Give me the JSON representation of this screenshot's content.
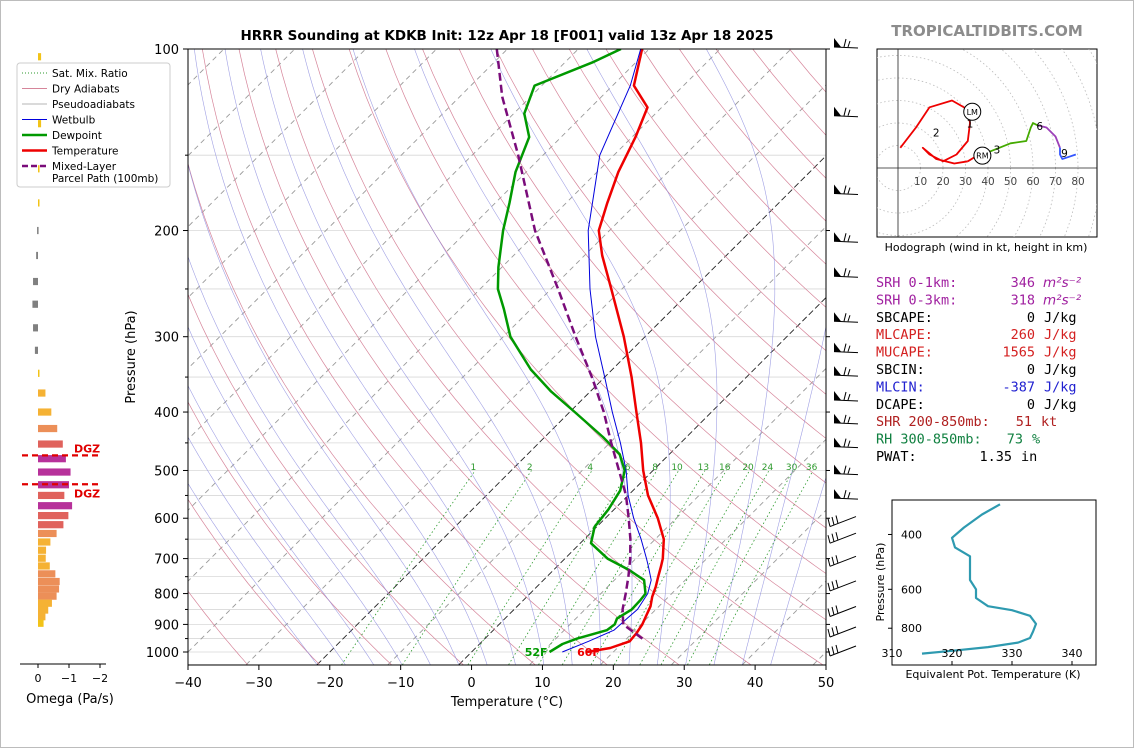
{
  "title": "HRRR Sounding at KDKB Init: 12z Apr 18 [F001] valid 13z Apr 18 2025",
  "watermark": "TROPICALTIDBITS.COM",
  "chart_data": [
    {
      "type": "line",
      "name": "skew-t",
      "xlabel": "Temperature (°C)",
      "ylabel": "Pressure (hPa)",
      "xlim": [
        -40,
        50
      ],
      "ylim": [
        1050,
        100
      ],
      "y_scale": "log",
      "skew": "45 degrees",
      "x_ticks": [
        -40,
        -30,
        -20,
        -10,
        0,
        10,
        20,
        30,
        40,
        50
      ],
      "y_ticks": [
        100,
        200,
        300,
        400,
        500,
        600,
        700,
        800,
        900,
        1000
      ],
      "legend": {
        "placement": "top-left",
        "entries": [
          {
            "label": "Sat. Mix. Ratio",
            "color": "#2e9a2e",
            "style": "dotted"
          },
          {
            "label": "Dry Adiabats",
            "color": "#d6859a",
            "style": "solid"
          },
          {
            "label": "Pseudoadiabats",
            "color": "#b5b5b5",
            "style": "solid"
          },
          {
            "label": "Wetbulb",
            "color": "#0000dd",
            "style": "solid"
          },
          {
            "label": "Dewpoint",
            "color": "#009900",
            "style": "solid"
          },
          {
            "label": "Temperature",
            "color": "#ee0000",
            "style": "solid"
          },
          {
            "label": "Mixed-Layer\nParcel Path (100mb)",
            "color": "#7a0c7a",
            "style": "dashed"
          }
        ]
      },
      "mixing_ratio_labels": [
        "1",
        "2",
        "4",
        "6",
        "8",
        "10",
        "13",
        "16",
        "20",
        "24",
        "30",
        "36"
      ],
      "surface_labels": {
        "dewpoint": "52F",
        "temperature": "60F"
      },
      "series": [
        {
          "name": "Temperature",
          "color": "#ee0000",
          "points": [
            [
              1000,
              16.3
            ],
            [
              985,
              19
            ],
            [
              960,
              20.8
            ],
            [
              930,
              20.6
            ],
            [
              900,
              20.2
            ],
            [
              870,
              19.5
            ],
            [
              840,
              18.8
            ],
            [
              810,
              17.7
            ],
            [
              780,
              16.8
            ],
            [
              750,
              15.7
            ],
            [
              720,
              14.6
            ],
            [
              700,
              13.8
            ],
            [
              650,
              11.2
            ],
            [
              600,
              7.4
            ],
            [
              550,
              2.8
            ],
            [
              500,
              -1.4
            ],
            [
              450,
              -5.6
            ],
            [
              400,
              -10.6
            ],
            [
              350,
              -16.2
            ],
            [
              300,
              -23
            ],
            [
              250,
              -31.5
            ],
            [
              220,
              -37.5
            ],
            [
              200,
              -41.5
            ],
            [
              180,
              -44.2
            ],
            [
              160,
              -47
            ],
            [
              140,
              -49.5
            ],
            [
              125,
              -52
            ],
            [
              115,
              -57
            ],
            [
              100,
              -61
            ]
          ]
        },
        {
          "name": "Dewpoint",
          "color": "#009900",
          "points": [
            [
              1000,
              11
            ],
            [
              970,
              11.7
            ],
            [
              950,
              13
            ],
            [
              920,
              16
            ],
            [
              900,
              16.3
            ],
            [
              880,
              15.8
            ],
            [
              850,
              16.6
            ],
            [
              820,
              16.5
            ],
            [
              800,
              16.3
            ],
            [
              760,
              14.2
            ],
            [
              730,
              10.5
            ],
            [
              700,
              6
            ],
            [
              660,
              1.5
            ],
            [
              620,
              -0.3
            ],
            [
              580,
              -0.8
            ],
            [
              540,
              -1.8
            ],
            [
              500,
              -4
            ],
            [
              470,
              -7
            ],
            [
              440,
              -11.8
            ],
            [
              400,
              -19.3
            ],
            [
              370,
              -25.5
            ],
            [
              340,
              -31.5
            ],
            [
              300,
              -39
            ],
            [
              270,
              -43.8
            ],
            [
              250,
              -47.5
            ],
            [
              230,
              -50.5
            ],
            [
              200,
              -55
            ],
            [
              180,
              -58
            ],
            [
              160,
              -61.5
            ],
            [
              140,
              -64.5
            ],
            [
              128,
              -68.5
            ],
            [
              115,
              -71
            ],
            [
              105,
              -66
            ],
            [
              100,
              -64
            ]
          ]
        },
        {
          "name": "Wetbulb",
          "color": "#0000dd",
          "points": [
            [
              1000,
              12.8
            ],
            [
              960,
              15
            ],
            [
              920,
              17
            ],
            [
              880,
              17.2
            ],
            [
              850,
              17.4
            ],
            [
              800,
              16.6
            ],
            [
              760,
              15.2
            ],
            [
              720,
              12.8
            ],
            [
              700,
              11.5
            ],
            [
              650,
              8
            ],
            [
              600,
              4
            ],
            [
              550,
              0
            ],
            [
              500,
              -3.8
            ],
            [
              450,
              -8.5
            ],
            [
              400,
              -14
            ],
            [
              350,
              -20
            ],
            [
              300,
              -27
            ],
            [
              250,
              -34.5
            ],
            [
              200,
              -43
            ],
            [
              150,
              -52
            ],
            [
              115,
              -57.5
            ],
            [
              100,
              -61.2
            ]
          ]
        },
        {
          "name": "Mixed-Layer Parcel Path (100mb)",
          "color": "#7a0c7a",
          "points": [
            [
              950,
              22.2
            ],
            [
              900,
              17.5
            ],
            [
              850,
              15.3
            ],
            [
              800,
              13.5
            ],
            [
              750,
              11.5
            ],
            [
              700,
              9.2
            ],
            [
              650,
              6.5
            ],
            [
              600,
              3.3
            ],
            [
              550,
              -0.3
            ],
            [
              500,
              -4.8
            ],
            [
              450,
              -9.8
            ],
            [
              400,
              -15.2
            ],
            [
              350,
              -21.8
            ],
            [
              300,
              -29.8
            ],
            [
              250,
              -39
            ],
            [
              200,
              -50.5
            ],
            [
              150,
              -63.5
            ],
            [
              120,
              -74
            ],
            [
              100,
              -81.5
            ]
          ]
        }
      ],
      "wind_barb_pressures": [
        100,
        130,
        175,
        210,
        240,
        285,
        320,
        350,
        385,
        420,
        460,
        510,
        560,
        610,
        650,
        710,
        780,
        860,
        930,
        1000
      ]
    },
    {
      "type": "bar",
      "name": "omega",
      "xlabel": "Omega (Pa/s)",
      "x_ticks": [
        "0",
        "−1",
        "−2"
      ],
      "annotations": [
        "DGZ",
        "DGZ"
      ],
      "bars": [
        {
          "p": 103,
          "v": -0.1
        },
        {
          "p": 133,
          "v": -0.1
        },
        {
          "p": 158,
          "v": -0.05
        },
        {
          "p": 180,
          "v": -0.02
        },
        {
          "p": 200,
          "v": 0.03
        },
        {
          "p": 220,
          "v": 0.06
        },
        {
          "p": 243,
          "v": 0.16
        },
        {
          "p": 265,
          "v": 0.18
        },
        {
          "p": 290,
          "v": 0.16
        },
        {
          "p": 316,
          "v": 0.1
        },
        {
          "p": 345,
          "v": -0.03
        },
        {
          "p": 372,
          "v": -0.24
        },
        {
          "p": 400,
          "v": -0.43
        },
        {
          "p": 426,
          "v": -0.62
        },
        {
          "p": 452,
          "v": -0.8
        },
        {
          "p": 478,
          "v": -0.9
        },
        {
          "p": 503,
          "v": -1.05
        },
        {
          "p": 528,
          "v": -1.0
        },
        {
          "p": 550,
          "v": -0.85
        },
        {
          "p": 572,
          "v": -1.1
        },
        {
          "p": 594,
          "v": -0.98
        },
        {
          "p": 615,
          "v": -0.82
        },
        {
          "p": 636,
          "v": -0.6
        },
        {
          "p": 657,
          "v": -0.4
        },
        {
          "p": 678,
          "v": -0.26
        },
        {
          "p": 699,
          "v": -0.25
        },
        {
          "p": 720,
          "v": -0.38
        },
        {
          "p": 742,
          "v": -0.56
        },
        {
          "p": 764,
          "v": -0.7
        },
        {
          "p": 786,
          "v": -0.68
        },
        {
          "p": 808,
          "v": -0.6
        },
        {
          "p": 830,
          "v": -0.45
        },
        {
          "p": 852,
          "v": -0.33
        },
        {
          "p": 874,
          "v": -0.24
        },
        {
          "p": 896,
          "v": -0.18
        }
      ]
    },
    {
      "type": "line",
      "name": "hodograph",
      "xlabel": "Hodograph (wind in kt, height in km)",
      "ring_labels": [
        "10",
        "20",
        "30",
        "40",
        "50",
        "60",
        "70",
        "80"
      ],
      "height_labels": [
        "1",
        "2",
        "3",
        "6",
        "9"
      ],
      "markers": [
        "LM",
        "RM"
      ],
      "segments": [
        {
          "color": "#ee0000",
          "points": [
            [
              1,
              9
            ],
            [
              8,
              18
            ],
            [
              14,
              27
            ],
            [
              24,
              30
            ],
            [
              31,
              26
            ],
            [
              32,
              20
            ],
            [
              31,
              12
            ],
            [
              26,
              6
            ],
            [
              20,
              3
            ],
            [
              14,
              6
            ],
            [
              11,
              9
            ],
            [
              17,
              4
            ],
            [
              25,
              2
            ],
            [
              31,
              3
            ]
          ]
        },
        {
          "color": "#ee0000",
          "points": [
            [
              31,
              3
            ],
            [
              36,
              6
            ],
            [
              40,
              7
            ]
          ]
        },
        {
          "color": "#44aa00",
          "points": [
            [
              40,
              7
            ],
            [
              45,
              9
            ],
            [
              50,
              11
            ],
            [
              57,
              12
            ],
            [
              59,
              18
            ],
            [
              60,
              20
            ],
            [
              62,
              19
            ]
          ]
        },
        {
          "color": "#9c40b8",
          "points": [
            [
              62,
              19
            ],
            [
              66,
              18
            ],
            [
              70,
              14
            ],
            [
              72,
              9
            ]
          ]
        },
        {
          "color": "#3355ff",
          "points": [
            [
              72,
              9
            ],
            [
              72,
              6
            ],
            [
              73,
              4
            ],
            [
              76,
              5
            ],
            [
              79,
              6
            ]
          ]
        }
      ],
      "marker_points": {
        "LM": [
          33,
          25
        ],
        "RM": [
          37.5,
          5.5
        ]
      }
    },
    {
      "type": "line",
      "name": "theta-e",
      "xlabel": "Equivalent Pot. Temperature (K)",
      "ylabel": "Pressure (hPa)",
      "x_ticks": [
        310,
        320,
        330,
        340
      ],
      "xlim": [
        310,
        344
      ],
      "ylim": [
        1050,
        310
      ],
      "y_ticks": [
        400,
        600,
        800
      ],
      "points": [
        [
          328,
          320
        ],
        [
          325,
          345
        ],
        [
          322,
          380
        ],
        [
          320,
          410
        ],
        [
          320.5,
          440
        ],
        [
          323,
          470
        ],
        [
          323,
          510
        ],
        [
          323,
          560
        ],
        [
          324,
          600
        ],
        [
          324,
          640
        ],
        [
          326,
          680
        ],
        [
          330,
          700
        ],
        [
          333,
          730
        ],
        [
          334,
          775
        ],
        [
          333.5,
          820
        ],
        [
          333,
          860
        ],
        [
          331,
          890
        ],
        [
          326,
          920
        ],
        [
          320,
          945
        ],
        [
          315,
          965
        ]
      ]
    }
  ],
  "indices": [
    {
      "label": "SRH 0-1km:",
      "value": "346",
      "unit_html": "m²s⁻²",
      "color": "#a020a0"
    },
    {
      "label": "SRH 0-3km:",
      "value": "318",
      "unit_html": "m²s⁻²",
      "color": "#a020a0"
    },
    {
      "label": "SBCAPE:",
      "value": "0",
      "unit_html": "J/kg",
      "color": "#000000"
    },
    {
      "label": "MLCAPE:",
      "value": "260",
      "unit_html": "J/kg",
      "color": "#d42020"
    },
    {
      "label": "MUCAPE:",
      "value": "1565",
      "unit_html": "J/kg",
      "color": "#d42020"
    },
    {
      "label": "SBCIN:",
      "value": "0",
      "unit_html": "J/kg",
      "color": "#000000"
    },
    {
      "label": "MLCIN:",
      "value": "-387",
      "unit_html": "J/kg",
      "color": "#2020d0"
    },
    {
      "label": "DCAPE:",
      "value": "0",
      "unit_html": "J/kg",
      "color": "#000000"
    },
    {
      "label": "SHR 200-850mb:",
      "value": "51",
      "unit_html": "kt",
      "color": "#b02020"
    },
    {
      "label": "RH 300-850mb:",
      "value": "73",
      "unit_html": "%",
      "color": "#108040"
    },
    {
      "label": "PWAT:",
      "value": "1.35",
      "unit_html": "in",
      "color": "#000000"
    }
  ]
}
